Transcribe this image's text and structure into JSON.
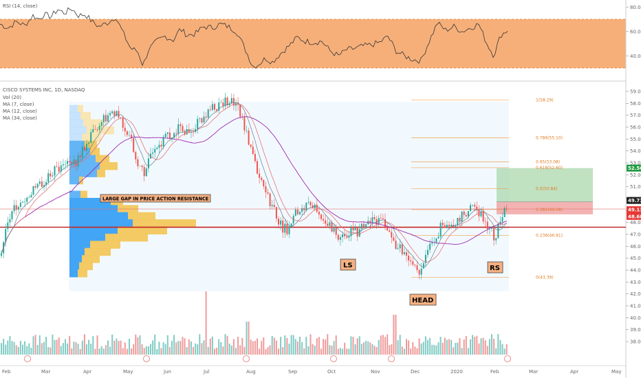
{
  "rsi_panel": {
    "title": "RSI (14, close)",
    "band_color": "#f5a66a",
    "upper_band": 70,
    "lower_band": 30,
    "y_ticks": [
      80,
      60,
      40
    ],
    "y_tick_labels": [
      "80.00",
      "60.00",
      "40.00"
    ]
  },
  "main_panel": {
    "title": "CISCO SYSTEMS INC, 1D, NASDAQ",
    "legend": [
      "Vol (20)",
      "MA (7, close)",
      "MA (12, close)",
      "MA (34, close)"
    ],
    "y_tick_labels": [
      "59.00",
      "58.00",
      "57.00",
      "56.00",
      "55.00",
      "54.00",
      "53.00",
      "52.00",
      "51.00",
      "50.00",
      "49.00",
      "48.00",
      "47.00",
      "46.00",
      "45.00",
      "44.00",
      "43.00",
      "42.00",
      "41.00",
      "40.00",
      "39.00",
      "38.00"
    ],
    "price_tags": [
      {
        "text": "52.56",
        "color": "#1f9b3f"
      },
      {
        "text": "49.73",
        "color": "#222222"
      },
      {
        "text": "49.13",
        "color": "#e53935"
      },
      {
        "text": "48.68",
        "color": "#e53935"
      }
    ]
  },
  "chart_data": {
    "type": "candlestick",
    "x_labels": [
      "Feb",
      "Mar",
      "Apr",
      "May",
      "Jun",
      "Jul",
      "Aug",
      "Sep",
      "Oct",
      "Nov",
      "Dec",
      "2020",
      "Feb",
      "Mar",
      "Apr",
      "May"
    ],
    "ylim": [
      37.5,
      59.5
    ],
    "price_path": [
      [
        0,
        45.2
      ],
      [
        10,
        48.0
      ],
      [
        20,
        49.2
      ],
      [
        30,
        49.5
      ],
      [
        40,
        50.3
      ],
      [
        50,
        50.7
      ],
      [
        60,
        51.3
      ],
      [
        70,
        51.9
      ],
      [
        80,
        52.4
      ],
      [
        90,
        52.6
      ],
      [
        100,
        53.2
      ],
      [
        110,
        53.1
      ],
      [
        120,
        54.0
      ],
      [
        130,
        55.0
      ],
      [
        140,
        56.1
      ],
      [
        150,
        56.6
      ],
      [
        160,
        56.9
      ],
      [
        170,
        57.0
      ],
      [
        180,
        55.8
      ],
      [
        190,
        54.9
      ],
      [
        200,
        53.2
      ],
      [
        210,
        52.2
      ],
      [
        220,
        54.0
      ],
      [
        230,
        54.6
      ],
      [
        240,
        55.0
      ],
      [
        250,
        55.3
      ],
      [
        260,
        56.2
      ],
      [
        270,
        55.6
      ],
      [
        280,
        56.0
      ],
      [
        290,
        56.4
      ],
      [
        300,
        56.9
      ],
      [
        310,
        57.6
      ],
      [
        320,
        57.9
      ],
      [
        330,
        58.1
      ],
      [
        340,
        58.0
      ],
      [
        350,
        57.2
      ],
      [
        360,
        55.1
      ],
      [
        370,
        53.0
      ],
      [
        380,
        51.5
      ],
      [
        390,
        50.0
      ],
      [
        400,
        48.8
      ],
      [
        410,
        47.6
      ],
      [
        420,
        47.3
      ],
      [
        430,
        48.8
      ],
      [
        440,
        49.4
      ],
      [
        450,
        49.7
      ],
      [
        460,
        49.1
      ],
      [
        470,
        48.3
      ],
      [
        480,
        47.9
      ],
      [
        490,
        47.0
      ],
      [
        500,
        46.7
      ],
      [
        510,
        47.3
      ],
      [
        520,
        47.2
      ],
      [
        530,
        47.6
      ],
      [
        540,
        48.0
      ],
      [
        550,
        48.2
      ],
      [
        560,
        47.9
      ],
      [
        570,
        46.5
      ],
      [
        580,
        45.9
      ],
      [
        590,
        45.4
      ],
      [
        600,
        44.6
      ],
      [
        610,
        44.0
      ],
      [
        620,
        45.2
      ],
      [
        630,
        46.4
      ],
      [
        640,
        47.5
      ],
      [
        650,
        48.1
      ],
      [
        660,
        48.0
      ],
      [
        670,
        48.6
      ],
      [
        680,
        48.9
      ],
      [
        690,
        49.4
      ],
      [
        700,
        48.6
      ],
      [
        710,
        47.8
      ],
      [
        720,
        46.6
      ],
      [
        730,
        48.6
      ],
      [
        738,
        49.5
      ]
    ],
    "rsi_path": [
      [
        0,
        66
      ],
      [
        12,
        63
      ],
      [
        24,
        68
      ],
      [
        36,
        65
      ],
      [
        48,
        73
      ],
      [
        56,
        70
      ],
      [
        64,
        74
      ],
      [
        74,
        72
      ],
      [
        84,
        78
      ],
      [
        94,
        75
      ],
      [
        104,
        79
      ],
      [
        114,
        73
      ],
      [
        124,
        74
      ],
      [
        134,
        68
      ],
      [
        144,
        64
      ],
      [
        156,
        67
      ],
      [
        168,
        72
      ],
      [
        178,
        60
      ],
      [
        190,
        46
      ],
      [
        200,
        44
      ],
      [
        208,
        32
      ],
      [
        216,
        45
      ],
      [
        228,
        52
      ],
      [
        240,
        56
      ],
      [
        252,
        53
      ],
      [
        262,
        62
      ],
      [
        272,
        57
      ],
      [
        284,
        58
      ],
      [
        296,
        64
      ],
      [
        308,
        63
      ],
      [
        320,
        66
      ],
      [
        332,
        64
      ],
      [
        344,
        60
      ],
      [
        356,
        46
      ],
      [
        368,
        31
      ],
      [
        376,
        33
      ],
      [
        386,
        38
      ],
      [
        396,
        35
      ],
      [
        408,
        42
      ],
      [
        420,
        48
      ],
      [
        432,
        55
      ],
      [
        444,
        52
      ],
      [
        456,
        51
      ],
      [
        468,
        52
      ],
      [
        480,
        44
      ],
      [
        492,
        40
      ],
      [
        504,
        45
      ],
      [
        516,
        46
      ],
      [
        528,
        48
      ],
      [
        540,
        49
      ],
      [
        552,
        51
      ],
      [
        564,
        56
      ],
      [
        576,
        44
      ],
      [
        588,
        40
      ],
      [
        600,
        37
      ],
      [
        612,
        36
      ],
      [
        624,
        52
      ],
      [
        636,
        67
      ],
      [
        648,
        61
      ],
      [
        660,
        64
      ],
      [
        672,
        60
      ],
      [
        684,
        63
      ],
      [
        696,
        66
      ],
      [
        708,
        50
      ],
      [
        718,
        40
      ],
      [
        728,
        57
      ],
      [
        738,
        61
      ]
    ],
    "fib_levels": [
      {
        "label": "1(58.29)",
        "price": 58.29
      },
      {
        "label": "0.786(55.10)",
        "price": 55.1
      },
      {
        "label": "0.65(53.08)",
        "price": 53.08
      },
      {
        "label": "0.618(52.60)",
        "price": 52.6
      },
      {
        "label": "0.5(50.84)",
        "price": 50.84
      },
      {
        "label": "0.382(49.08)",
        "price": 49.08
      },
      {
        "label": "0.236(46.91)",
        "price": 46.91
      },
      {
        "label": "0(43.39)",
        "price": 43.39
      }
    ],
    "horizontal_lines": [
      {
        "price": 47.6,
        "color": "#b71c1c"
      },
      {
        "price": 49.13,
        "color": "#e57373"
      }
    ],
    "target_zone": {
      "top": 52.56,
      "bottom": 49.73,
      "color": "#a5d6a7"
    },
    "stop_zone": {
      "top": 49.73,
      "bottom": 48.68,
      "color": "#ef9a9a"
    },
    "volume_profile": [
      {
        "price": 57.5,
        "buy": 12,
        "sell": 8
      },
      {
        "price": 56.9,
        "buy": 16,
        "sell": 15
      },
      {
        "price": 56.3,
        "buy": 20,
        "sell": 30
      },
      {
        "price": 55.7,
        "buy": 25,
        "sell": 40
      },
      {
        "price": 55.1,
        "buy": 18,
        "sell": 28
      },
      {
        "price": 54.5,
        "buy": 22,
        "sell": 18
      },
      {
        "price": 53.9,
        "buy": 30,
        "sell": 14
      },
      {
        "price": 53.3,
        "buy": 38,
        "sell": 20
      },
      {
        "price": 52.7,
        "buy": 44,
        "sell": 26
      },
      {
        "price": 52.1,
        "buy": 40,
        "sell": 12
      },
      {
        "price": 51.5,
        "buy": 14,
        "sell": 6
      },
      {
        "price": 50.3,
        "buy": 16,
        "sell": 10
      },
      {
        "price": 49.7,
        "buy": 60,
        "sell": 18
      },
      {
        "price": 49.1,
        "buy": 70,
        "sell": 30
      },
      {
        "price": 48.5,
        "buy": 85,
        "sell": 40
      },
      {
        "price": 47.9,
        "buy": 92,
        "sell": 92
      },
      {
        "price": 47.3,
        "buy": 70,
        "sell": 72
      },
      {
        "price": 46.7,
        "buy": 52,
        "sell": 62
      },
      {
        "price": 46.1,
        "buy": 30,
        "sell": 44
      },
      {
        "price": 45.5,
        "buy": 22,
        "sell": 38
      },
      {
        "price": 44.9,
        "buy": 18,
        "sell": 26
      },
      {
        "price": 44.3,
        "buy": 14,
        "sell": 20
      },
      {
        "price": 43.7,
        "buy": 12,
        "sell": 14
      }
    ]
  },
  "annotations": {
    "gap_label": "LARGE GAP IN PRICE ACTION RESISTANCE",
    "ls_label": "LS",
    "head_label": "HEAD",
    "rs_label": "RS"
  }
}
